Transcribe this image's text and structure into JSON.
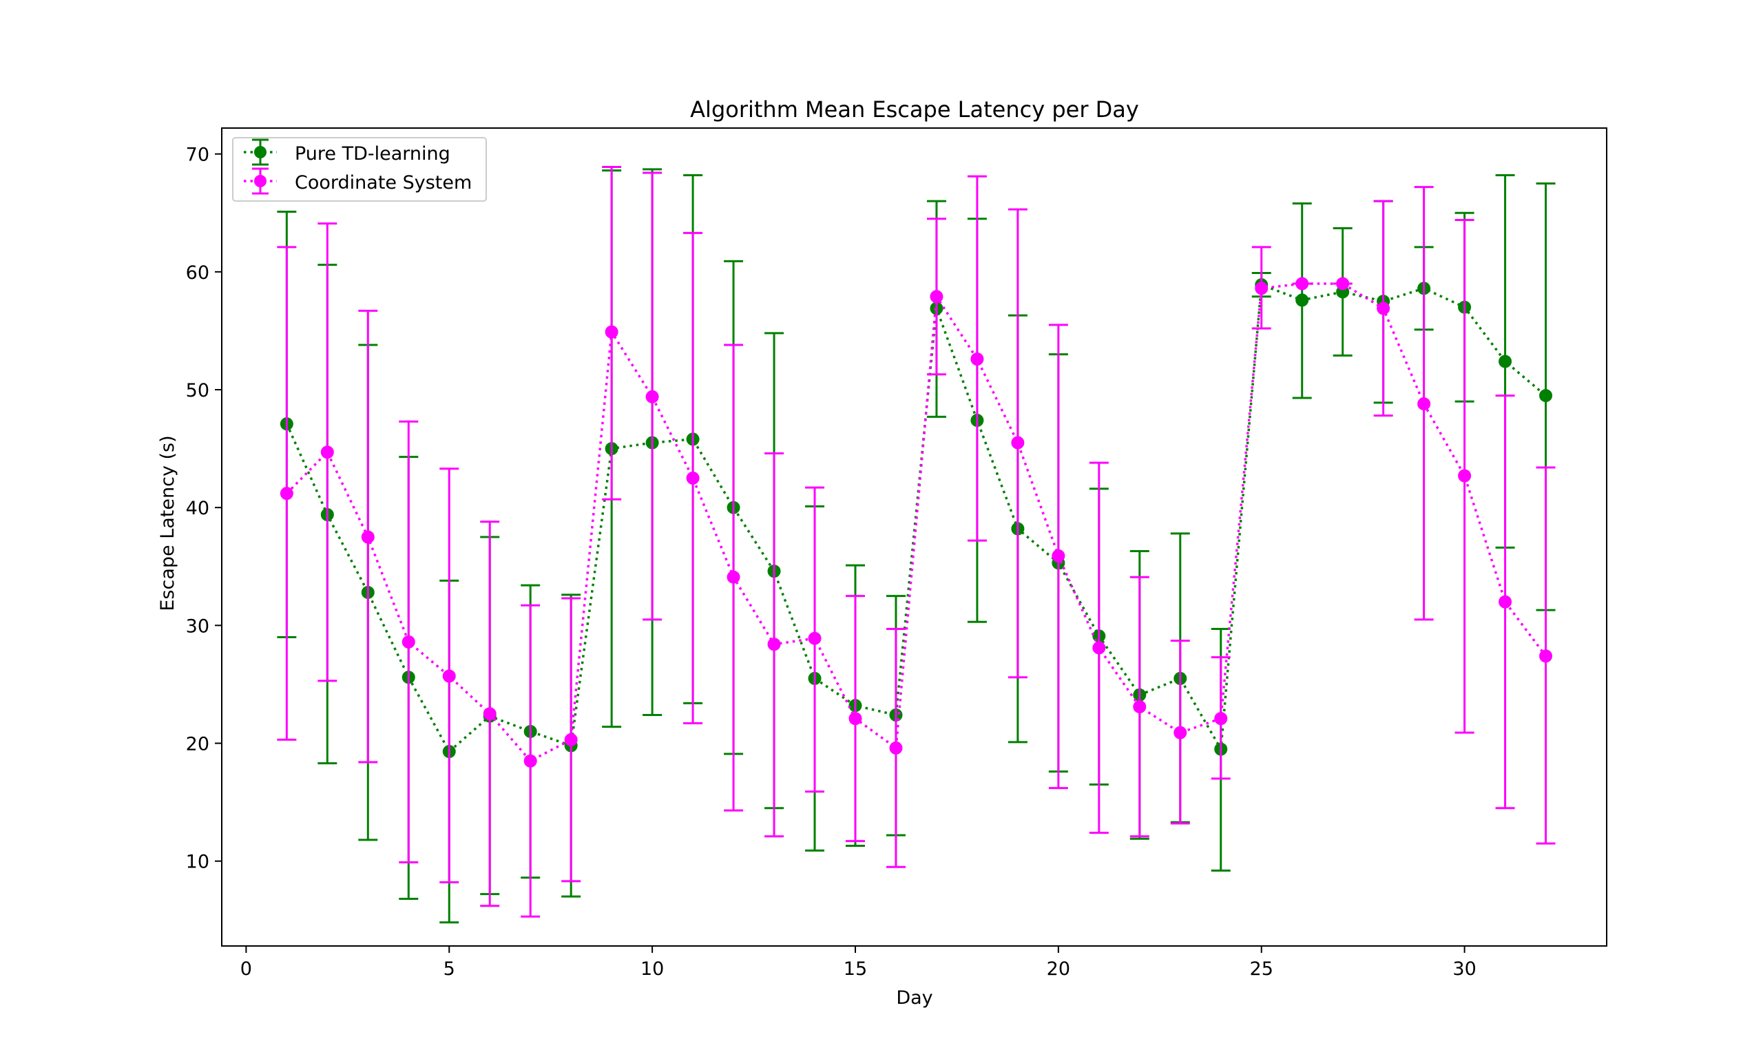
{
  "chart_data": {
    "type": "line",
    "title": "Algorithm Mean Escape Latency per Day",
    "xlabel": "Day",
    "ylabel": "Escape Latency (s)",
    "xlim": [
      -0.6,
      33.5
    ],
    "ylim": [
      2.8,
      72.2
    ],
    "xticks": [
      0,
      5,
      10,
      15,
      20,
      25,
      30
    ],
    "yticks": [
      10,
      20,
      30,
      40,
      50,
      60,
      70
    ],
    "grid": false,
    "legend_position": "top-left",
    "x": [
      1,
      2,
      3,
      4,
      5,
      6,
      7,
      8,
      9,
      10,
      11,
      12,
      13,
      14,
      15,
      16,
      17,
      18,
      19,
      20,
      21,
      22,
      23,
      24,
      25,
      26,
      27,
      28,
      29,
      30,
      31,
      32
    ],
    "series": [
      {
        "name": "Pure TD-learning",
        "color": "#008000",
        "linestyle": "dotted",
        "marker": "circle",
        "values": [
          47.1,
          39.4,
          32.8,
          25.6,
          19.3,
          22.3,
          21.0,
          19.8,
          45.0,
          45.5,
          45.8,
          40.0,
          34.6,
          25.5,
          23.2,
          22.4,
          56.9,
          47.4,
          38.2,
          35.3,
          29.1,
          24.1,
          25.5,
          19.5,
          58.9,
          57.6,
          58.3,
          57.5,
          58.6,
          57.0,
          52.4,
          49.5
        ],
        "err_low": [
          29.0,
          18.3,
          11.8,
          6.8,
          4.8,
          7.2,
          8.6,
          7.0,
          21.4,
          22.4,
          23.4,
          19.1,
          14.5,
          10.9,
          11.3,
          12.2,
          47.7,
          30.3,
          20.1,
          17.6,
          16.5,
          11.9,
          13.3,
          9.2,
          57.9,
          49.3,
          52.9,
          48.9,
          55.1,
          49.0,
          36.6,
          31.3
        ],
        "err_high": [
          65.1,
          60.6,
          53.8,
          44.3,
          33.8,
          37.5,
          33.4,
          32.6,
          68.6,
          68.7,
          68.2,
          60.9,
          54.8,
          40.1,
          35.1,
          32.5,
          66.0,
          64.5,
          56.3,
          53.0,
          41.6,
          36.3,
          37.8,
          29.7,
          59.9,
          65.8,
          63.7,
          66.0,
          62.1,
          65.0,
          68.2,
          67.5
        ]
      },
      {
        "name": "Coordinate System",
        "color": "#ff00ff",
        "linestyle": "dotted",
        "marker": "circle",
        "values": [
          41.2,
          44.7,
          37.5,
          28.6,
          25.7,
          22.5,
          18.5,
          20.3,
          54.9,
          49.4,
          42.5,
          34.1,
          28.4,
          28.9,
          22.1,
          19.6,
          57.9,
          52.6,
          45.5,
          35.9,
          28.1,
          23.1,
          20.9,
          22.1,
          58.6,
          59.0,
          59.0,
          56.9,
          48.8,
          42.7,
          32.0,
          27.4
        ],
        "err_low": [
          20.3,
          25.3,
          18.4,
          9.9,
          8.2,
          6.2,
          5.3,
          8.3,
          40.7,
          30.5,
          21.7,
          14.3,
          12.1,
          15.9,
          11.7,
          9.5,
          51.3,
          37.2,
          25.6,
          16.2,
          12.4,
          12.1,
          13.2,
          17.0,
          55.2,
          59.0,
          59.0,
          47.8,
          30.5,
          20.9,
          14.5,
          11.5
        ],
        "err_high": [
          62.1,
          64.1,
          56.7,
          47.3,
          43.3,
          38.8,
          31.7,
          32.3,
          68.9,
          68.4,
          63.3,
          53.8,
          44.6,
          41.7,
          32.5,
          29.7,
          64.5,
          68.1,
          65.3,
          55.5,
          43.8,
          34.1,
          28.7,
          27.3,
          62.1,
          59.0,
          59.0,
          66.0,
          67.2,
          64.4,
          49.5,
          43.4
        ]
      }
    ]
  }
}
